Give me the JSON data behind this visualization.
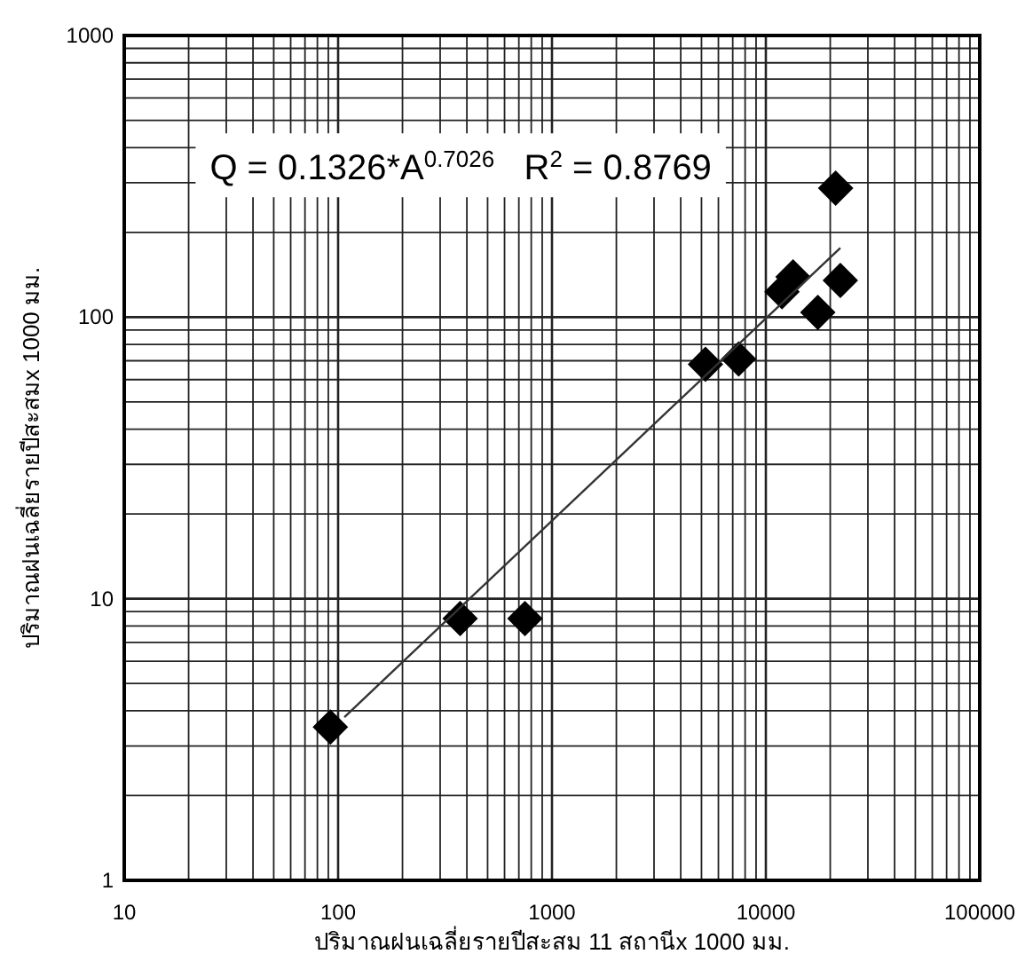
{
  "chart_data": {
    "type": "scatter",
    "xlabel": "ปริมาณฝนเฉลี่ยรายปีสะสม 11 สถานีx 1000 มม.",
    "ylabel": "ปริมาณฝนเฉลี่ยรายปีสะสมx 1000 มม.",
    "annotations": [
      "Q = 0.1326*A$^{0.7026}$   R$^{2}$ = 0.8769"
    ],
    "log": "xy",
    "grid": true,
    "marker": "diamond",
    "xlim": [
      10,
      100000
    ],
    "ylim": [
      1,
      1000
    ],
    "xticks": [
      10,
      100,
      1000,
      10000,
      100000
    ],
    "yticks": [
      1,
      10,
      100,
      1000
    ],
    "series": [
      {
        "type": "scatter",
        "color": "#000000",
        "x": [
          92,
          372,
          747,
          5220,
          7460,
          11900,
          13400,
          17500,
          21200,
          22300
        ],
        "values": [
          3.5,
          8.5,
          8.5,
          68,
          71,
          123,
          139,
          104,
          287,
          135
        ]
      },
      {
        "type": "line",
        "color": "#333333",
        "marker": "none",
        "line_style": "solid",
        "x": [
          107,
          22300
        ],
        "values": [
          3.8,
          176
        ]
      }
    ]
  }
}
